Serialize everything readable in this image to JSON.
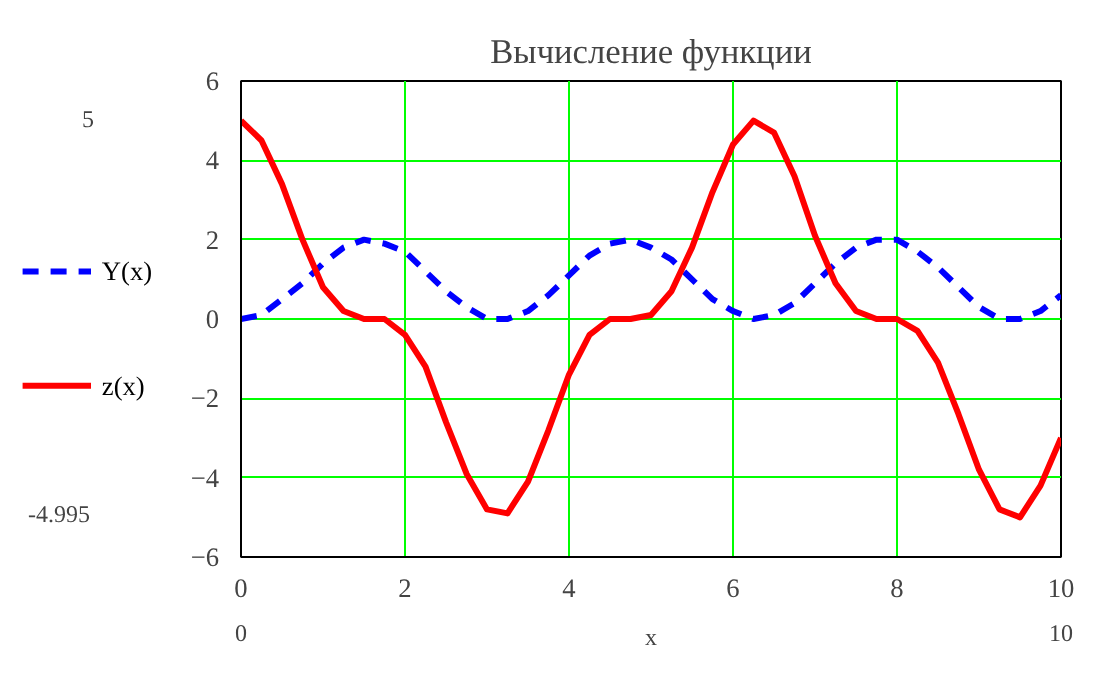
{
  "chart_data": {
    "type": "line",
    "title": "Вычисление функции",
    "xlabel": "x",
    "x": [
      0,
      0.25,
      0.5,
      0.75,
      1,
      1.25,
      1.5,
      1.75,
      2,
      2.25,
      2.5,
      2.75,
      3,
      3.25,
      3.5,
      3.75,
      4,
      4.25,
      4.5,
      4.75,
      5,
      5.25,
      5.5,
      5.75,
      6,
      6.25,
      6.5,
      6.75,
      7,
      7.25,
      7.5,
      7.75,
      8,
      8.25,
      8.5,
      8.75,
      9,
      9.25,
      9.5,
      9.75,
      10
    ],
    "series": [
      {
        "name": "Y(x)",
        "color": "#0000ff",
        "line_style": "dashed",
        "values": [
          0,
          0.1,
          0.5,
          0.9,
          1.4,
          1.8,
          2.0,
          1.9,
          1.7,
          1.2,
          0.7,
          0.3,
          0.0,
          0.0,
          0.2,
          0.6,
          1.1,
          1.6,
          1.9,
          2.0,
          1.8,
          1.5,
          1.0,
          0.5,
          0.2,
          0.0,
          0.1,
          0.4,
          0.9,
          1.4,
          1.8,
          2.0,
          2.0,
          1.7,
          1.3,
          0.8,
          0.3,
          0.0,
          0.0,
          0.2,
          0.6
        ]
      },
      {
        "name": "z(x)",
        "color": "#ff0000",
        "line_style": "solid",
        "values": [
          5.0,
          4.5,
          3.4,
          2.0,
          0.8,
          0.2,
          0.0,
          0.0,
          -0.4,
          -1.2,
          -2.6,
          -3.9,
          -4.8,
          -4.9,
          -4.1,
          -2.8,
          -1.4,
          -0.4,
          0.0,
          0.0,
          0.1,
          0.7,
          1.8,
          3.2,
          4.4,
          5.0,
          4.7,
          3.6,
          2.1,
          0.9,
          0.2,
          0.0,
          0.0,
          -0.3,
          -1.1,
          -2.4,
          -3.8,
          -4.8,
          -5.0,
          -4.2,
          -3.0
        ]
      }
    ],
    "xlim": [
      0,
      10
    ],
    "ylim": [
      -6,
      6
    ],
    "xticks": [
      0,
      2,
      4,
      6,
      8,
      10
    ],
    "yticks": [
      -6,
      -4,
      -2,
      0,
      2,
      4,
      6
    ],
    "grid": true,
    "legend": "left",
    "annotations": [
      "5",
      "-4.995",
      "0",
      "10"
    ]
  }
}
